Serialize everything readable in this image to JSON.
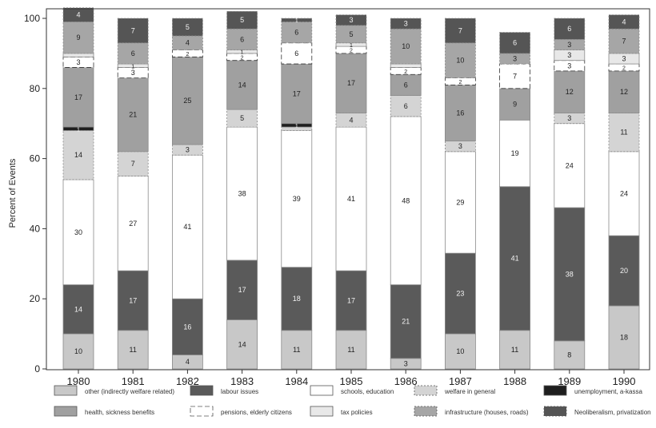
{
  "chart_data": {
    "type": "bar",
    "stacked": true,
    "ylabel": "Percent of Events",
    "xlabel": "",
    "ylim": [
      0,
      100
    ],
    "yticks": [
      0,
      20,
      40,
      60,
      80,
      100
    ],
    "categories": [
      "1980",
      "1981",
      "1982",
      "1983",
      "1984",
      "1985",
      "1986",
      "1987",
      "1988",
      "1989",
      "1990"
    ],
    "series": [
      {
        "name": "other (indirectly welfare related)",
        "color": "#c8c8c8",
        "style": "solid",
        "values": [
          10,
          11,
          4,
          14,
          11,
          11,
          3,
          10,
          11,
          8,
          18
        ],
        "labels": [
          "10",
          "11",
          "4",
          "14",
          "11",
          "11",
          "3",
          "10",
          "11",
          "8",
          "18"
        ]
      },
      {
        "name": "labour issues",
        "color": "#5a5a5a",
        "style": "solid",
        "values": [
          14,
          17,
          16,
          17,
          18,
          17,
          21,
          23,
          41,
          38,
          20
        ],
        "labels": [
          "14",
          "17",
          "16",
          "17",
          "18",
          "17",
          "21",
          "23",
          "41",
          "38",
          "20"
        ]
      },
      {
        "name": "schools, education",
        "color": "#ffffff",
        "style": "solid",
        "values": [
          30,
          27,
          41,
          38,
          39,
          41,
          48,
          29,
          19,
          24,
          24
        ],
        "labels": [
          "30",
          "27",
          "41",
          "38",
          "39",
          "41",
          "48",
          "29",
          "19",
          "24",
          "24"
        ]
      },
      {
        "name": "welfare in general",
        "color": "#d4d4d4",
        "style": "dotted",
        "values": [
          14,
          7,
          3,
          5,
          1,
          4,
          6,
          3,
          0,
          3,
          11
        ],
        "labels": [
          "14",
          "7",
          "3",
          "5",
          "",
          "4",
          "6",
          "3",
          "",
          "3",
          "11"
        ]
      },
      {
        "name": "unemployment, a-kassa",
        "color": "#1e1e1e",
        "style": "solid",
        "values": [
          1,
          0,
          0,
          0,
          1,
          0,
          0,
          0,
          0,
          0,
          0
        ],
        "labels": [
          "1",
          "",
          "",
          "",
          "1",
          "",
          "",
          "",
          "",
          "",
          ""
        ]
      },
      {
        "name": "health, sickness benefits",
        "color": "#a0a0a0",
        "style": "solid",
        "values": [
          17,
          21,
          25,
          14,
          17,
          17,
          6,
          16,
          9,
          12,
          12
        ],
        "labels": [
          "17",
          "21",
          "25",
          "14",
          "17",
          "17",
          "6",
          "16",
          "9",
          "12",
          "12"
        ]
      },
      {
        "name": "pensions, elderly citizens",
        "color": "#ffffff",
        "style": "dashed",
        "values": [
          3,
          3,
          2,
          2,
          6,
          2,
          2,
          2,
          7,
          3,
          2
        ],
        "labels": [
          "3",
          "3",
          "2",
          "2",
          "6",
          "2",
          "2",
          "2",
          "7",
          "3",
          "2"
        ]
      },
      {
        "name": "tax policies",
        "color": "#e8e8e8",
        "style": "solid",
        "values": [
          1,
          1,
          0,
          1,
          0,
          1,
          1,
          0,
          0,
          3,
          3
        ],
        "labels": [
          "",
          "1",
          "",
          "1",
          "",
          "1",
          "",
          "",
          "",
          "3",
          "3"
        ]
      },
      {
        "name": "infrastructure (houses, roads)",
        "color": "#a6a6a6",
        "style": "dotted",
        "values": [
          9,
          6,
          4,
          6,
          6,
          5,
          10,
          10,
          3,
          3,
          7
        ],
        "labels": [
          "9",
          "6",
          "4",
          "6",
          "6",
          "5",
          "10",
          "10",
          "3",
          "3",
          "7"
        ]
      },
      {
        "name": "Neoliberalism, privatization",
        "color": "#555555",
        "style": "dotted",
        "values": [
          4,
          7,
          5,
          5,
          1,
          3,
          3,
          7,
          6,
          6,
          4
        ],
        "labels": [
          "4",
          "7",
          "5",
          "5",
          "1",
          "3",
          "3",
          "7",
          "6",
          "6",
          "4"
        ]
      }
    ],
    "legend": {
      "placement": "bottom",
      "columns": 5
    },
    "grid": false
  }
}
